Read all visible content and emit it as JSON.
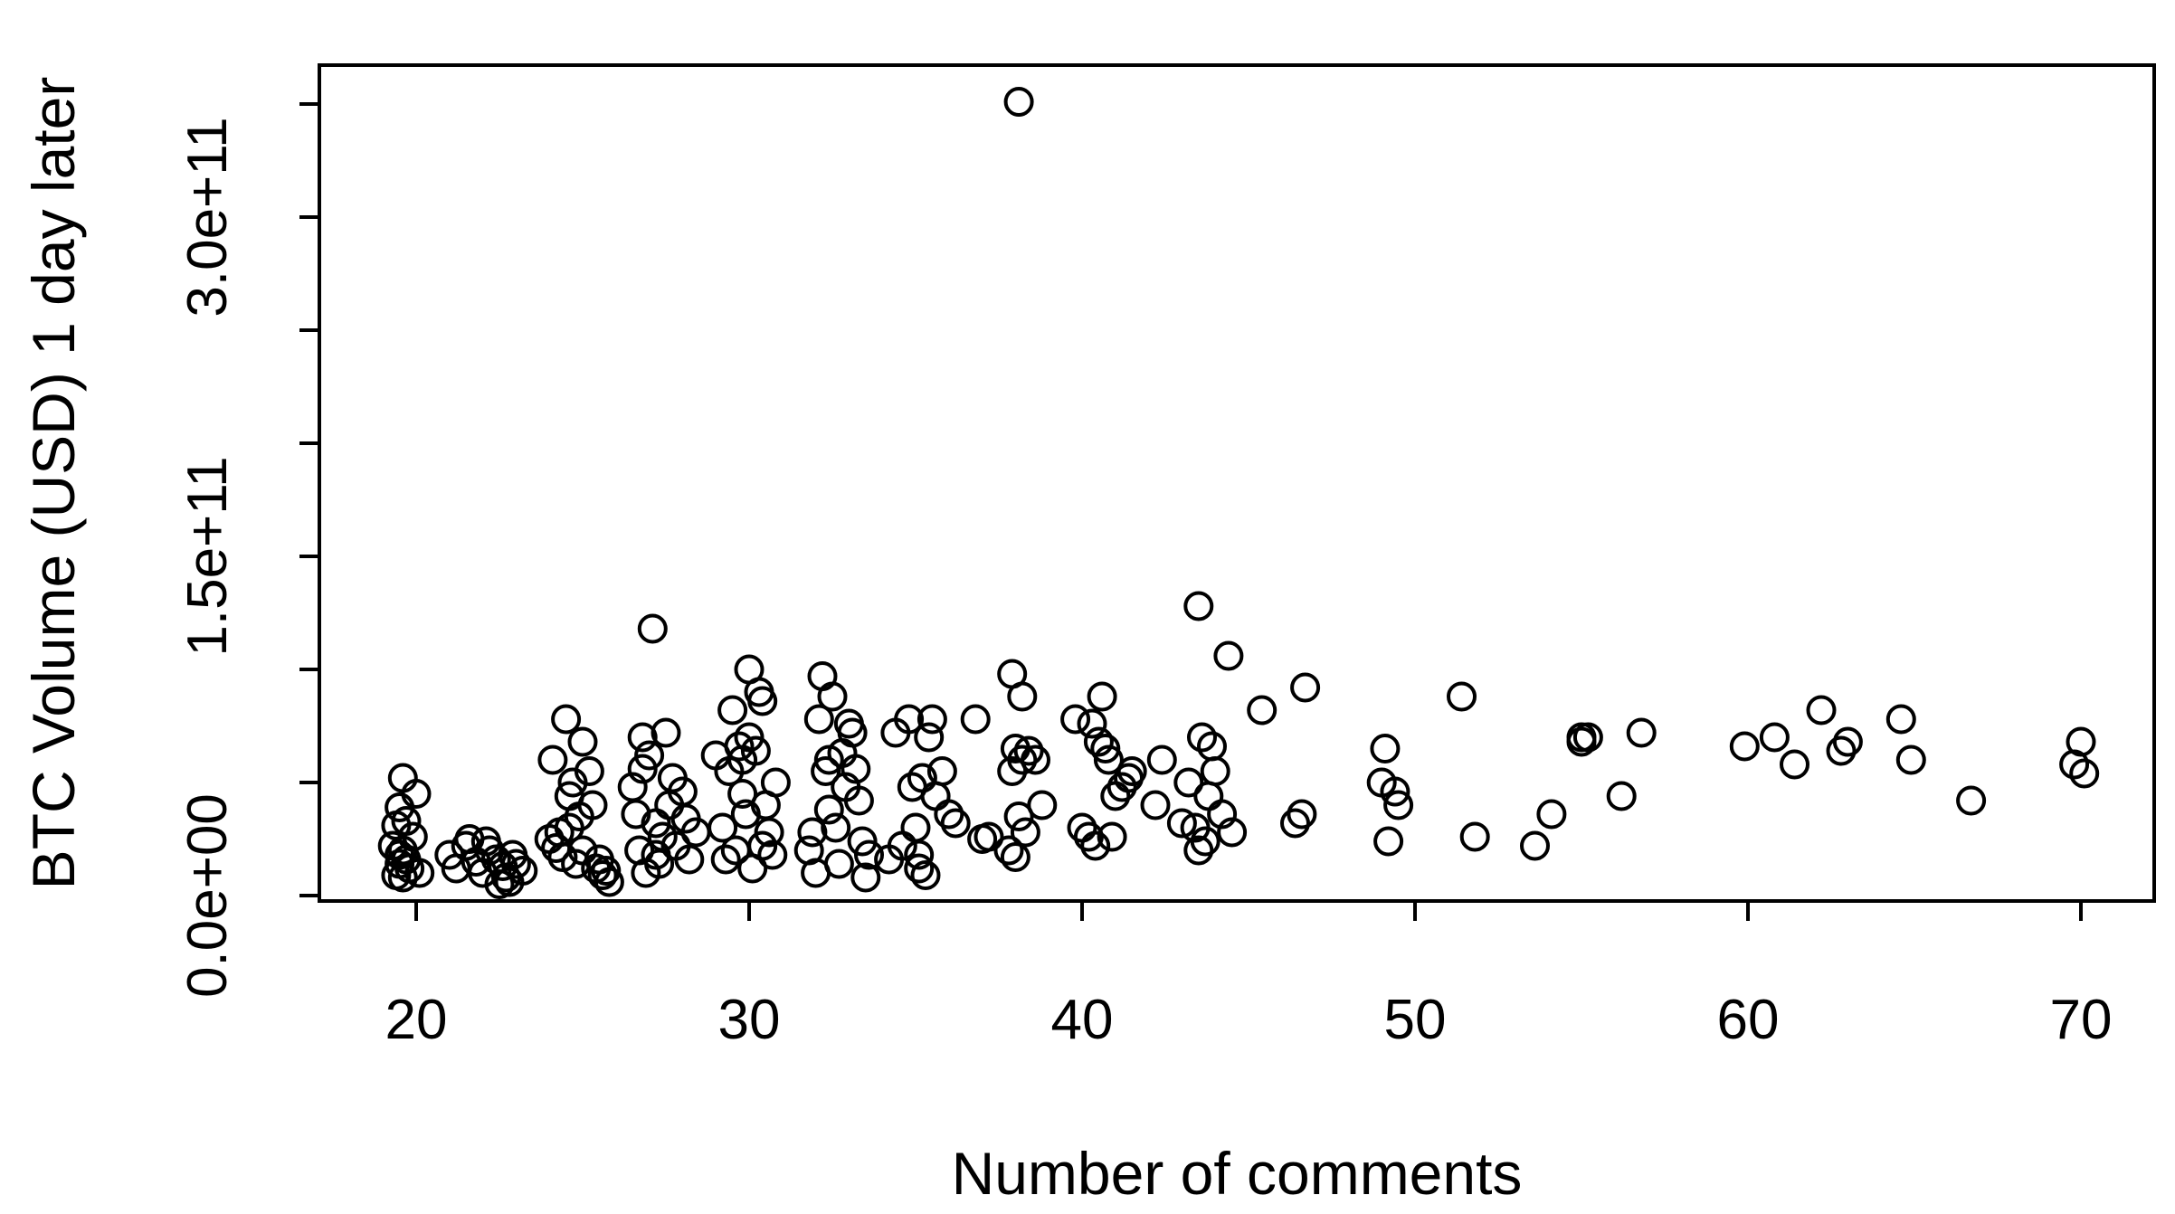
{
  "chart_data": {
    "type": "scatter",
    "title": "",
    "xlabel": "Number of comments",
    "ylabel": "BTC Volume (USD) 1 day later",
    "xlim": [
      17,
      72
    ],
    "ylim": [
      0,
      370000000000
    ],
    "x_ticks": [
      20,
      30,
      40,
      50,
      60,
      70
    ],
    "x_tick_labels": [
      "20",
      "30",
      "40",
      "50",
      "60",
      "70"
    ],
    "y_ticks": [
      0,
      50000000000,
      100000000000,
      150000000000,
      200000000000,
      250000000000,
      300000000000,
      350000000000
    ],
    "y_tick_labels": [
      "0.0e+00",
      "",
      "",
      "1.5e+11",
      "",
      "",
      "3.0e+11",
      ""
    ],
    "grid": false,
    "legend": "none",
    "marker": "open-circle",
    "color": "#000000",
    "series": [
      {
        "points": [
          [
            19.4,
            9000000000.0
          ],
          [
            19.5,
            14000000000.0
          ],
          [
            19.6,
            20000000000.0
          ],
          [
            19.4,
            31000000000.0
          ],
          [
            19.6,
            52000000000.0
          ],
          [
            19.7,
            16000000000.0
          ],
          [
            19.5,
            18000000000.0
          ],
          [
            19.8,
            12000000000.0
          ],
          [
            19.3,
            22000000000.0
          ],
          [
            19.9,
            26000000000.0
          ],
          [
            19.7,
            33000000000.0
          ],
          [
            19.5,
            39000000000.0
          ],
          [
            20.0,
            45000000000.0
          ],
          [
            19.6,
            8000000000.0
          ],
          [
            20.1,
            10000000000.0
          ],
          [
            21.0,
            18000000000.0
          ],
          [
            21.2,
            12000000000.0
          ],
          [
            21.5,
            22000000000.0
          ],
          [
            21.8,
            15000000000.0
          ],
          [
            22.0,
            10000000000.0
          ],
          [
            22.2,
            20000000000.0
          ],
          [
            22.4,
            16000000000.0
          ],
          [
            22.6,
            13000000000.0
          ],
          [
            22.7,
            8000000000.0
          ],
          [
            22.8,
            6000000000.0
          ],
          [
            22.9,
            18000000000.0
          ],
          [
            23.0,
            14000000000.0
          ],
          [
            21.6,
            25000000000.0
          ],
          [
            22.1,
            24000000000.0
          ],
          [
            23.2,
            11000000000.0
          ],
          [
            22.5,
            5000000000.0
          ],
          [
            24.0,
            25000000000.0
          ],
          [
            24.2,
            21000000000.0
          ],
          [
            24.4,
            17000000000.0
          ],
          [
            24.5,
            78000000000.0
          ],
          [
            24.6,
            30000000000.0
          ],
          [
            24.8,
            14000000000.0
          ],
          [
            25.0,
            20000000000.0
          ],
          [
            25.0,
            68000000000.0
          ],
          [
            25.2,
            55000000000.0
          ],
          [
            25.4,
            12000000000.0
          ],
          [
            25.6,
            9000000000.0
          ],
          [
            25.8,
            6000000000.0
          ],
          [
            24.1,
            60000000000.0
          ],
          [
            24.7,
            50000000000.0
          ],
          [
            25.3,
            40000000000.0
          ],
          [
            24.9,
            35000000000.0
          ],
          [
            24.3,
            28000000000.0
          ],
          [
            25.5,
            16000000000.0
          ],
          [
            25.7,
            11000000000.0
          ],
          [
            24.6,
            44000000000.0
          ],
          [
            26.5,
            48000000000.0
          ],
          [
            26.7,
            20000000000.0
          ],
          [
            26.8,
            70000000000.0
          ],
          [
            27.0,
            62000000000.0
          ],
          [
            27.1,
            118000000000.0
          ],
          [
            27.2,
            32000000000.0
          ],
          [
            27.4,
            26000000000.0
          ],
          [
            27.5,
            72000000000.0
          ],
          [
            27.6,
            40000000000.0
          ],
          [
            27.8,
            22000000000.0
          ],
          [
            28.0,
            46000000000.0
          ],
          [
            28.2,
            16000000000.0
          ],
          [
            28.4,
            28000000000.0
          ],
          [
            26.9,
            10000000000.0
          ],
          [
            27.3,
            14000000000.0
          ],
          [
            26.6,
            36000000000.0
          ],
          [
            27.7,
            52000000000.0
          ],
          [
            28.1,
            34000000000.0
          ],
          [
            26.8,
            56000000000.0
          ],
          [
            27.2,
            18000000000.0
          ],
          [
            29.0,
            62000000000.0
          ],
          [
            29.2,
            30000000000.0
          ],
          [
            29.4,
            55000000000.0
          ],
          [
            29.5,
            82000000000.0
          ],
          [
            29.6,
            20000000000.0
          ],
          [
            29.8,
            45000000000.0
          ],
          [
            30.0,
            100000000000.0
          ],
          [
            30.0,
            70000000000.0
          ],
          [
            30.1,
            12000000000.0
          ],
          [
            30.2,
            64000000000.0
          ],
          [
            30.3,
            90000000000.0
          ],
          [
            30.4,
            86000000000.0
          ],
          [
            30.5,
            40000000000.0
          ],
          [
            30.6,
            28000000000.0
          ],
          [
            30.8,
            50000000000.0
          ],
          [
            29.7,
            66000000000.0
          ],
          [
            29.9,
            36000000000.0
          ],
          [
            30.4,
            22000000000.0
          ],
          [
            29.3,
            16000000000.0
          ],
          [
            30.7,
            18000000000.0
          ],
          [
            29.8,
            60000000000.0
          ],
          [
            31.8,
            20000000000.0
          ],
          [
            32.0,
            10000000000.0
          ],
          [
            32.1,
            78000000000.0
          ],
          [
            32.2,
            97000000000.0
          ],
          [
            32.3,
            55000000000.0
          ],
          [
            32.4,
            38000000000.0
          ],
          [
            32.5,
            88000000000.0
          ],
          [
            32.6,
            30000000000.0
          ],
          [
            32.8,
            63000000000.0
          ],
          [
            33.0,
            76000000000.0
          ],
          [
            33.1,
            72000000000.0
          ],
          [
            33.2,
            56000000000.0
          ],
          [
            33.4,
            24000000000.0
          ],
          [
            33.5,
            8000000000.0
          ],
          [
            33.6,
            18000000000.0
          ],
          [
            31.9,
            28000000000.0
          ],
          [
            32.7,
            14000000000.0
          ],
          [
            33.3,
            42000000000.0
          ],
          [
            32.9,
            48000000000.0
          ],
          [
            32.4,
            60000000000.0
          ],
          [
            34.2,
            16000000000.0
          ],
          [
            34.4,
            72000000000.0
          ],
          [
            34.6,
            22000000000.0
          ],
          [
            34.8,
            78000000000.0
          ],
          [
            35.0,
            30000000000.0
          ],
          [
            35.1,
            12000000000.0
          ],
          [
            35.2,
            52000000000.0
          ],
          [
            35.3,
            9000000000.0
          ],
          [
            35.4,
            70000000000.0
          ],
          [
            35.5,
            78000000000.0
          ],
          [
            35.6,
            44000000000.0
          ],
          [
            35.8,
            55000000000.0
          ],
          [
            36.0,
            36000000000.0
          ],
          [
            36.2,
            32000000000.0
          ],
          [
            34.9,
            48000000000.0
          ],
          [
            35.1,
            18000000000.0
          ],
          [
            36.8,
            78000000000.0
          ],
          [
            37.0,
            25000000000.0
          ],
          [
            37.2,
            26000000000.0
          ],
          [
            37.8,
            20000000000.0
          ],
          [
            37.9,
            98000000000.0
          ],
          [
            38.0,
            65000000000.0
          ],
          [
            38.1,
            35000000000.0
          ],
          [
            38.2,
            60000000000.0
          ],
          [
            38.2,
            88000000000.0
          ],
          [
            38.3,
            28000000000.0
          ],
          [
            38.4,
            64000000000.0
          ],
          [
            38.6,
            60000000000.0
          ],
          [
            38.8,
            40000000000.0
          ],
          [
            38.0,
            17000000000.0
          ],
          [
            38.1,
            351000000000.0
          ],
          [
            37.9,
            55000000000.0
          ],
          [
            39.8,
            78000000000.0
          ],
          [
            40.0,
            30000000000.0
          ],
          [
            40.2,
            26000000000.0
          ],
          [
            40.4,
            22000000000.0
          ],
          [
            40.5,
            68000000000.0
          ],
          [
            40.6,
            88000000000.0
          ],
          [
            40.7,
            65000000000.0
          ],
          [
            40.8,
            60000000000.0
          ],
          [
            40.9,
            26000000000.0
          ],
          [
            41.0,
            44000000000.0
          ],
          [
            41.2,
            48000000000.0
          ],
          [
            41.4,
            52000000000.0
          ],
          [
            41.5,
            55000000000.0
          ],
          [
            40.3,
            76000000000.0
          ],
          [
            42.2,
            40000000000.0
          ],
          [
            42.4,
            60000000000.0
          ],
          [
            43.0,
            32000000000.0
          ],
          [
            43.2,
            50000000000.0
          ],
          [
            43.4,
            30000000000.0
          ],
          [
            43.5,
            20000000000.0
          ],
          [
            43.5,
            128000000000.0
          ],
          [
            43.6,
            70000000000.0
          ],
          [
            43.8,
            44000000000.0
          ],
          [
            43.9,
            66000000000.0
          ],
          [
            44.0,
            55000000000.0
          ],
          [
            44.2,
            36000000000.0
          ],
          [
            44.4,
            106000000000.0
          ],
          [
            44.5,
            28000000000.0
          ],
          [
            43.7,
            24000000000.0
          ],
          [
            45.4,
            82000000000.0
          ],
          [
            46.4,
            32000000000.0
          ],
          [
            46.6,
            36000000000.0
          ],
          [
            46.7,
            92000000000.0
          ],
          [
            49.0,
            50000000000.0
          ],
          [
            49.1,
            65000000000.0
          ],
          [
            49.2,
            24000000000.0
          ],
          [
            49.4,
            46000000000.0
          ],
          [
            49.5,
            40000000000.0
          ],
          [
            51.4,
            88000000000.0
          ],
          [
            51.8,
            26000000000.0
          ],
          [
            53.6,
            22000000000.0
          ],
          [
            54.1,
            36000000000.0
          ],
          [
            55.0,
            68000000000.0
          ],
          [
            55.0,
            70000000000.0
          ],
          [
            55.2,
            70000000000.0
          ],
          [
            56.2,
            44000000000.0
          ],
          [
            56.8,
            72000000000.0
          ],
          [
            59.9,
            66000000000.0
          ],
          [
            60.8,
            70000000000.0
          ],
          [
            61.4,
            58000000000.0
          ],
          [
            62.2,
            82000000000.0
          ],
          [
            62.8,
            64000000000.0
          ],
          [
            63.0,
            68000000000.0
          ],
          [
            64.6,
            78000000000.0
          ],
          [
            64.9,
            60000000000.0
          ],
          [
            66.7,
            42000000000.0
          ],
          [
            69.8,
            58000000000.0
          ],
          [
            70.0,
            68000000000.0
          ],
          [
            70.1,
            54000000000.0
          ]
        ]
      }
    ]
  }
}
